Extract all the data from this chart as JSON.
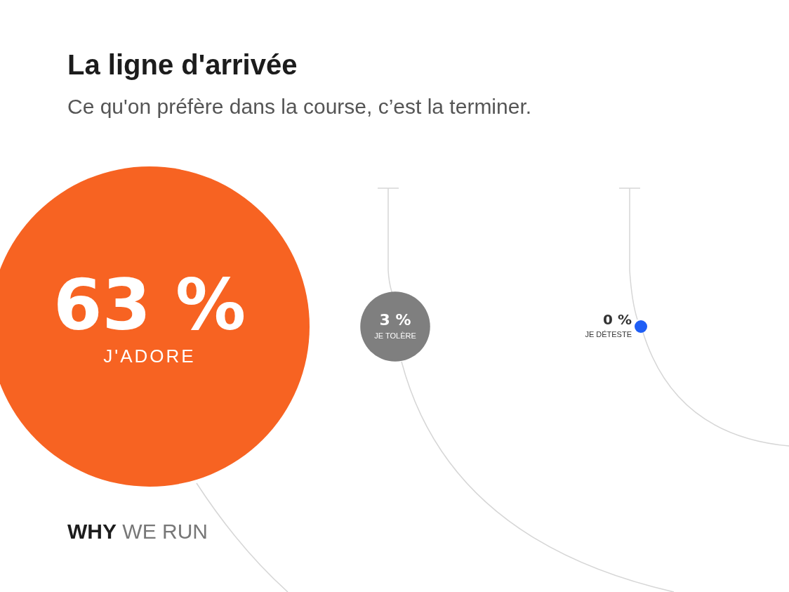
{
  "chart_data": {
    "type": "other",
    "title": "La ligne d'arrivée",
    "subtitle": "Ce qu'on préfère dans la course, c’est la terminer.",
    "categories": [
      "J'ADORE",
      "JE TOLÈRE",
      "JE DÉTESTE"
    ],
    "values": [
      63,
      3,
      0
    ],
    "value_labels": [
      "63 %",
      "3 %",
      "0 %"
    ],
    "colors": [
      "#f76322",
      "#7f7f7f",
      "#1f5ef5"
    ],
    "annotations": [
      "WHY WE RUN"
    ]
  }
}
